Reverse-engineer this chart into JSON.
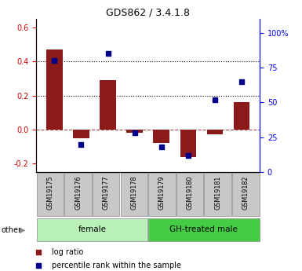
{
  "title": "GDS862 / 3.4.1.8",
  "samples": [
    "GSM19175",
    "GSM19176",
    "GSM19177",
    "GSM19178",
    "GSM19179",
    "GSM19180",
    "GSM19181",
    "GSM19182"
  ],
  "log_ratio": [
    0.47,
    -0.05,
    0.29,
    -0.02,
    -0.08,
    -0.16,
    -0.03,
    0.16
  ],
  "percentile_rank": [
    80,
    20,
    85,
    28,
    18,
    12,
    52,
    65
  ],
  "bar_color": "#8B1A1A",
  "dot_color": "#00008B",
  "ylim_left": [
    -0.25,
    0.65
  ],
  "ylim_right": [
    0,
    110
  ],
  "yticks_left": [
    -0.2,
    0.0,
    0.2,
    0.4,
    0.6
  ],
  "yticks_right": [
    0,
    25,
    50,
    75,
    100
  ],
  "ytick_labels_right": [
    "0",
    "25",
    "50",
    "75",
    "100%"
  ],
  "hlines": [
    0.4,
    0.2
  ],
  "zero_line": 0.0,
  "group_labels": [
    "female",
    "GH-treated male"
  ],
  "group_ranges": [
    [
      0,
      4
    ],
    [
      4,
      8
    ]
  ],
  "other_label": "other",
  "legend_bar_label": "log ratio",
  "legend_dot_label": "percentile rank within the sample",
  "bar_width": 0.6,
  "figsize": [
    3.85,
    3.45
  ],
  "dpi": 100
}
